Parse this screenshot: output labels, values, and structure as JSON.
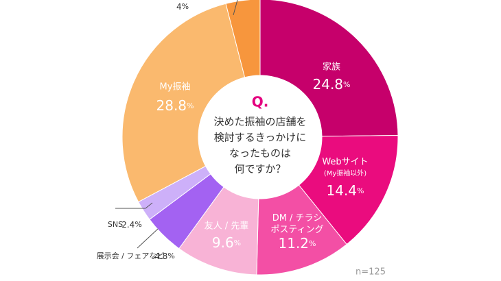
{
  "chart_data": {
    "type": "donut",
    "categories": [
      "家族",
      "Webサイト\n(My振袖以外)",
      "DM / チラシ\nポスティング",
      "友人 / 先輩",
      "展示会 / フェアなど",
      "SNS",
      "My振袖",
      null
    ],
    "values": [
      24.8,
      14.4,
      11.2,
      9.6,
      4.8,
      2.4,
      28.8,
      4
    ],
    "colors": [
      "#c6006b",
      "#ea0c7e",
      "#f34fa5",
      "#f8b3d6",
      "#a362f2",
      "#cdb0f9",
      "#fab96e",
      "#f7963d"
    ],
    "unit": "%",
    "center_title": "Q.",
    "center_text": [
      "決めた振袖の店舗を",
      "検討するきっかけに",
      "なったものは",
      "何ですか？"
    ],
    "note": "n=125"
  }
}
